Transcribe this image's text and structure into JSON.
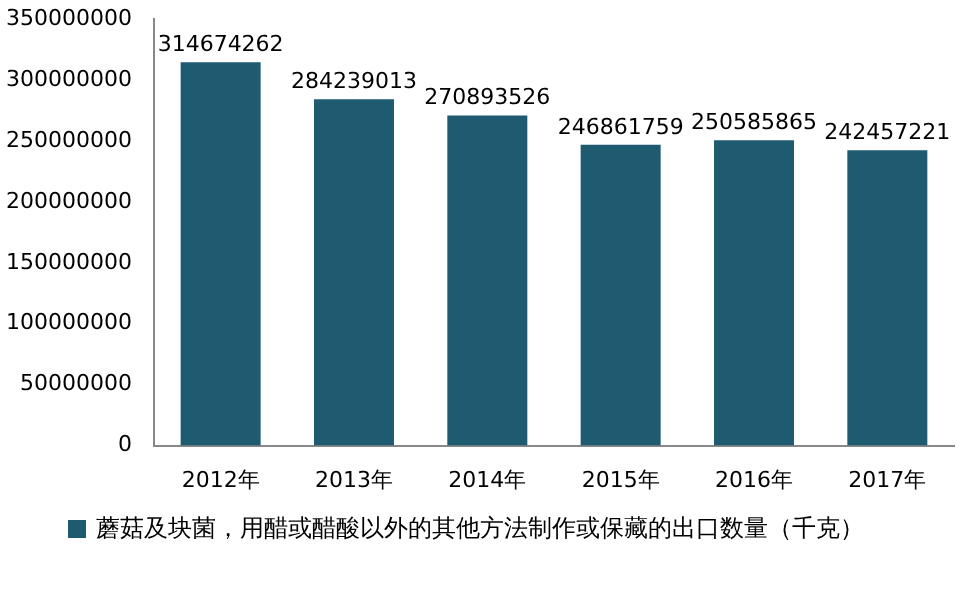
{
  "chart_data": {
    "type": "bar",
    "categories": [
      "2012年",
      "2013年",
      "2014年",
      "2015年",
      "2016年",
      "2017年"
    ],
    "series": [
      {
        "name": "蘑菇及块菌，用醋或醋酸以外的其他方法制作或保藏的出口数量（千克）",
        "color": "#1e5a70",
        "values": [
          314674262,
          284239013,
          270893526,
          246861759,
          250585865,
          242457221
        ]
      }
    ],
    "ylim": [
      0,
      350000000
    ],
    "yticks": [
      0,
      50000000,
      100000000,
      150000000,
      200000000,
      250000000,
      300000000,
      350000000
    ],
    "grid": false,
    "legend": "bottom",
    "data_labels": true
  }
}
